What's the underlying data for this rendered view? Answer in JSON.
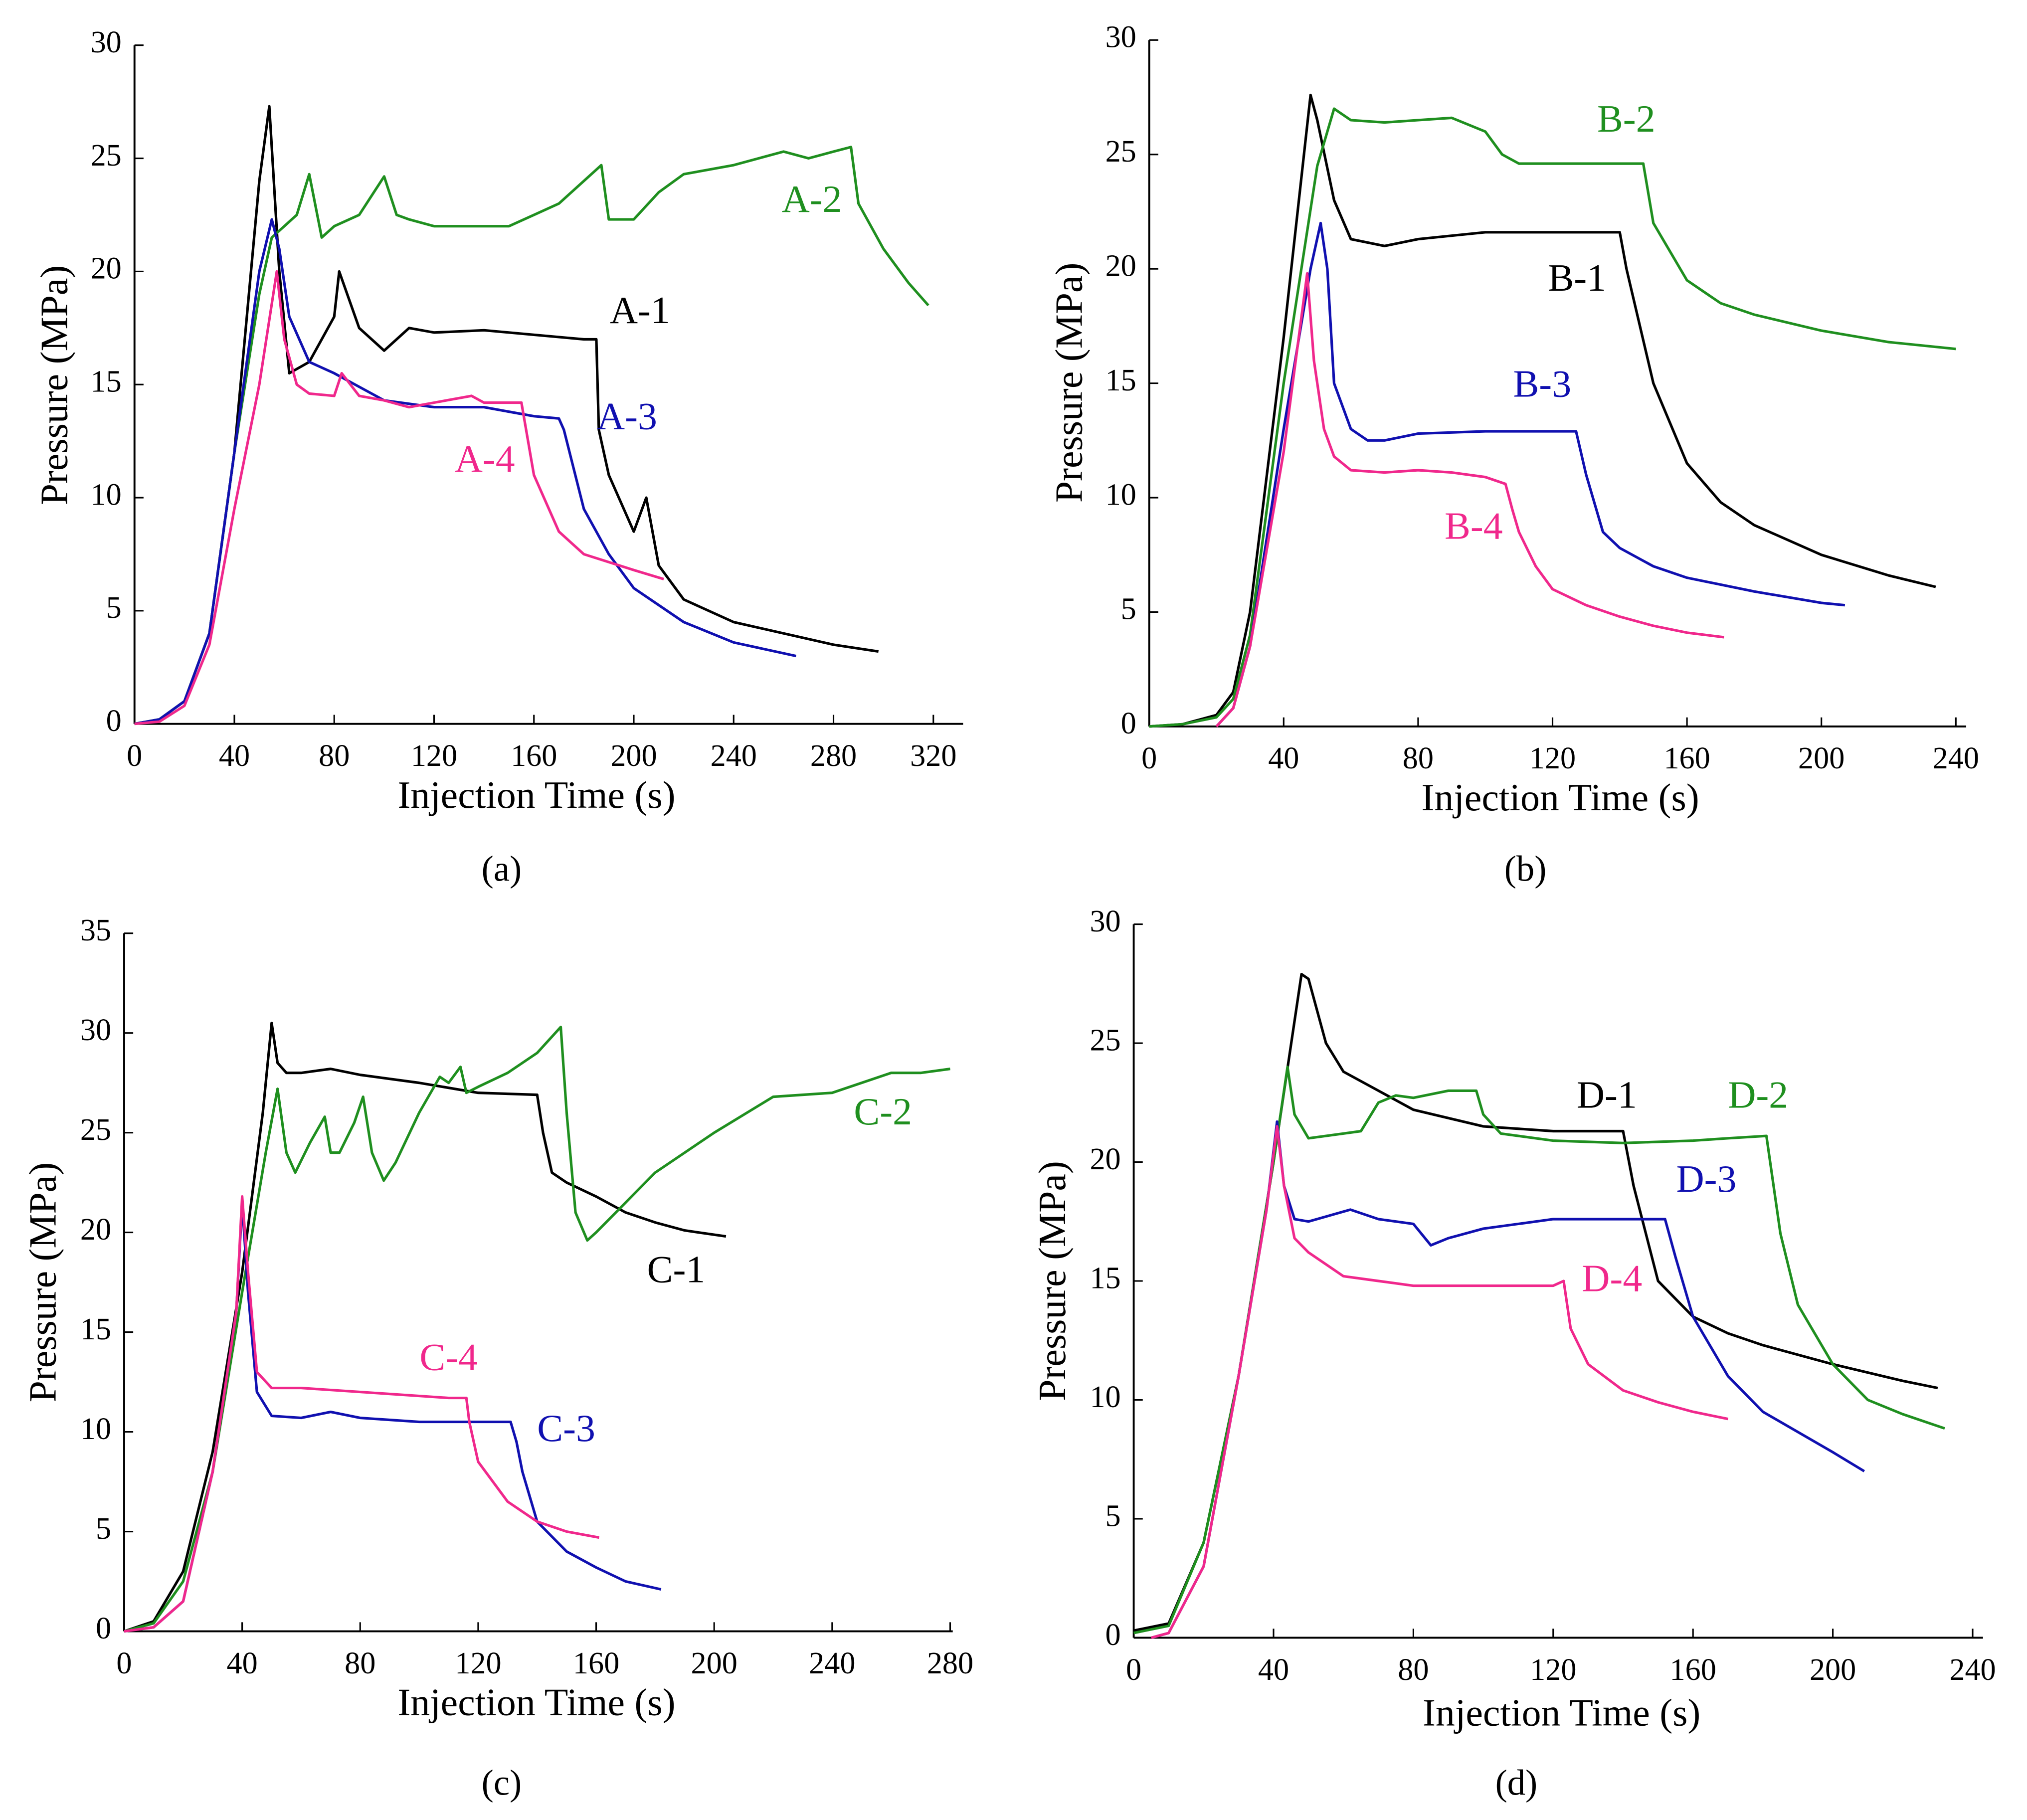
{
  "chart_data": [
    {
      "type": "line",
      "caption": "(a)",
      "xlabel": "Injection Time (s)",
      "ylabel": "Pressure (MPa)",
      "xlim": [
        0,
        320
      ],
      "ylim": [
        0,
        30
      ],
      "xticks": [
        0,
        40,
        80,
        120,
        160,
        200,
        240,
        280,
        320
      ],
      "yticks": [
        0,
        5,
        10,
        15,
        20,
        25,
        30
      ],
      "series": [
        {
          "name": "A-1",
          "color": "#000000",
          "x": [
            0,
            10,
            20,
            30,
            40,
            50,
            54,
            58,
            62,
            70,
            80,
            82,
            90,
            100,
            110,
            120,
            140,
            160,
            180,
            185,
            186,
            190,
            200,
            205,
            210,
            220,
            240,
            260,
            280,
            298
          ],
          "values": [
            0,
            0.2,
            1,
            4,
            12,
            24,
            27.3,
            20,
            15.5,
            16,
            18,
            20,
            17.5,
            16.5,
            17.5,
            17.3,
            17.4,
            17.2,
            17,
            17,
            13,
            11,
            8.5,
            10,
            7,
            5.5,
            4.5,
            4,
            3.5,
            3.2
          ]
        },
        {
          "name": "A-2",
          "color": "#1f8f1f",
          "x": [
            0,
            10,
            20,
            30,
            40,
            50,
            55,
            60,
            65,
            70,
            75,
            80,
            90,
            100,
            105,
            110,
            120,
            140,
            150,
            160,
            170,
            180,
            187,
            190,
            200,
            210,
            220,
            240,
            260,
            270,
            280,
            287,
            290,
            300,
            310,
            318
          ],
          "values": [
            0,
            0.2,
            1,
            4,
            12,
            19,
            21.5,
            22,
            22.5,
            24.3,
            21.5,
            22,
            22.5,
            24.2,
            22.5,
            22.3,
            22,
            22,
            22,
            22.5,
            23,
            24,
            24.7,
            22.3,
            22.3,
            23.5,
            24.3,
            24.7,
            25.3,
            25,
            25.3,
            25.5,
            23,
            21,
            19.5,
            18.5
          ]
        },
        {
          "name": "A-3",
          "color": "#1010b0",
          "x": [
            0,
            10,
            20,
            30,
            40,
            50,
            55,
            58,
            62,
            70,
            80,
            100,
            120,
            140,
            160,
            170,
            172,
            180,
            190,
            200,
            220,
            240,
            265
          ],
          "values": [
            0,
            0.2,
            1,
            4,
            12,
            20,
            22.3,
            21,
            18,
            16,
            15.5,
            14.3,
            14,
            14,
            13.6,
            13.5,
            13,
            9.5,
            7.5,
            6,
            4.5,
            3.6,
            3
          ]
        },
        {
          "name": "A-4",
          "color": "#f0288c",
          "x": [
            0,
            10,
            20,
            30,
            40,
            50,
            57,
            60,
            65,
            70,
            80,
            83,
            90,
            100,
            110,
            120,
            135,
            140,
            150,
            155,
            160,
            170,
            180,
            200,
            212
          ],
          "values": [
            0,
            0.1,
            0.8,
            3.5,
            9.5,
            15,
            20,
            17,
            15,
            14.6,
            14.5,
            15.5,
            14.5,
            14.3,
            14,
            14.2,
            14.5,
            14.2,
            14.2,
            14.2,
            11,
            8.5,
            7.5,
            6.8,
            6.4
          ]
        }
      ]
    },
    {
      "type": "line",
      "caption": "(b)",
      "xlabel": "Injection Time (s)",
      "ylabel": "Pressure (MPa)",
      "xlim": [
        0,
        240
      ],
      "ylim": [
        0,
        30
      ],
      "xticks": [
        0,
        40,
        80,
        120,
        160,
        200,
        240
      ],
      "yticks": [
        0,
        5,
        10,
        15,
        20,
        25,
        30
      ],
      "series": [
        {
          "name": "B-1",
          "color": "#000000",
          "x": [
            0,
            10,
            20,
            25,
            30,
            40,
            48,
            50,
            55,
            60,
            70,
            80,
            100,
            120,
            140,
            142,
            150,
            160,
            170,
            180,
            200,
            220,
            234
          ],
          "values": [
            0,
            0.1,
            0.5,
            1.5,
            5,
            17,
            27.6,
            26.5,
            23,
            21.3,
            21,
            21.3,
            21.6,
            21.6,
            21.6,
            20,
            15,
            11.5,
            9.8,
            8.8,
            7.5,
            6.6,
            6.1
          ]
        },
        {
          "name": "B-2",
          "color": "#1f8f1f",
          "x": [
            0,
            10,
            20,
            25,
            30,
            40,
            50,
            55,
            60,
            70,
            80,
            90,
            100,
            105,
            110,
            120,
            140,
            147,
            150,
            160,
            170,
            180,
            200,
            220,
            240
          ],
          "values": [
            0,
            0.1,
            0.4,
            1.2,
            4,
            15,
            24.5,
            27,
            26.5,
            26.4,
            26.5,
            26.6,
            26,
            25,
            24.6,
            24.6,
            24.6,
            24.6,
            22,
            19.5,
            18.5,
            18,
            17.3,
            16.8,
            16.5
          ]
        },
        {
          "name": "B-3",
          "color": "#1010b0",
          "x": [
            20,
            25,
            30,
            40,
            48,
            51,
            53,
            55,
            60,
            65,
            70,
            80,
            100,
            120,
            127,
            130,
            135,
            140,
            150,
            160,
            180,
            200,
            207
          ],
          "values": [
            0,
            0.8,
            3.5,
            13,
            20,
            22,
            20,
            15,
            13,
            12.5,
            12.5,
            12.8,
            12.9,
            12.9,
            12.9,
            11,
            8.5,
            7.8,
            7,
            6.5,
            5.9,
            5.4,
            5.3
          ]
        },
        {
          "name": "B-4",
          "color": "#f0288c",
          "x": [
            20,
            25,
            30,
            40,
            47,
            49,
            52,
            55,
            60,
            70,
            80,
            90,
            100,
            106,
            108,
            110,
            115,
            120,
            130,
            140,
            150,
            160,
            171
          ],
          "values": [
            0,
            0.8,
            3.5,
            12,
            19.8,
            16,
            13,
            11.8,
            11.2,
            11.1,
            11.2,
            11.1,
            10.9,
            10.6,
            9.5,
            8.5,
            7,
            6,
            5.3,
            4.8,
            4.4,
            4.1,
            3.9
          ]
        }
      ]
    },
    {
      "type": "line",
      "caption": "(c)",
      "xlabel": "Injection Time (s)",
      "ylabel": "Pressure (MPa)",
      "xlim": [
        0,
        280
      ],
      "ylim": [
        0,
        35
      ],
      "xticks": [
        0,
        40,
        80,
        120,
        160,
        200,
        240,
        280
      ],
      "yticks": [
        0,
        5,
        10,
        15,
        20,
        25,
        30,
        35
      ],
      "series": [
        {
          "name": "C-1",
          "color": "#000000",
          "x": [
            0,
            10,
            20,
            30,
            40,
            47,
            50,
            52,
            55,
            60,
            70,
            80,
            100,
            120,
            140,
            142,
            145,
            150,
            160,
            170,
            180,
            190,
            204
          ],
          "values": [
            0,
            0.5,
            3,
            9,
            18,
            26,
            30.5,
            28.5,
            28,
            28,
            28.2,
            27.9,
            27.5,
            27,
            26.9,
            25,
            23,
            22.5,
            21.8,
            21,
            20.5,
            20.1,
            19.8
          ]
        },
        {
          "name": "C-2",
          "color": "#1f8f1f",
          "x": [
            0,
            10,
            20,
            30,
            40,
            48,
            52,
            55,
            58,
            63,
            68,
            70,
            73,
            78,
            81,
            84,
            88,
            92,
            100,
            107,
            110,
            114,
            116,
            120,
            130,
            140,
            148,
            150,
            153,
            157,
            160,
            170,
            180,
            200,
            220,
            240,
            260,
            270,
            280
          ],
          "values": [
            0,
            0.4,
            2.5,
            8,
            17,
            24,
            27.2,
            24,
            23,
            24.5,
            25.8,
            24,
            24,
            25.5,
            26.8,
            24,
            22.6,
            23.5,
            26,
            27.8,
            27.5,
            28.3,
            27,
            27.3,
            28,
            29,
            30.3,
            26,
            21,
            19.6,
            20,
            21.5,
            23,
            25,
            26.8,
            27,
            28,
            28,
            28.2
          ]
        },
        {
          "name": "C-3",
          "color": "#1010b0",
          "x": [
            0,
            10,
            20,
            30,
            38,
            40,
            42,
            45,
            50,
            60,
            70,
            80,
            100,
            120,
            131,
            133,
            135,
            140,
            150,
            160,
            170,
            182
          ],
          "values": [
            0,
            0.2,
            1.5,
            8,
            16,
            21.5,
            17,
            12,
            10.8,
            10.7,
            11,
            10.7,
            10.5,
            10.5,
            10.5,
            9.5,
            8,
            5.5,
            4,
            3.2,
            2.5,
            2.1
          ]
        },
        {
          "name": "C-4",
          "color": "#f0288c",
          "x": [
            0,
            10,
            20,
            30,
            38,
            40,
            42,
            45,
            50,
            60,
            80,
            100,
            110,
            116,
            117,
            120,
            130,
            140,
            150,
            161
          ],
          "values": [
            0,
            0.2,
            1.5,
            8,
            16,
            21.8,
            18,
            13,
            12.2,
            12.2,
            12,
            11.8,
            11.7,
            11.7,
            10.5,
            8.5,
            6.5,
            5.5,
            5,
            4.7
          ]
        }
      ]
    },
    {
      "type": "line",
      "caption": "(d)",
      "xlabel": "Injection Time (s)",
      "ylabel": "Pressure (MPa)",
      "xlim": [
        0,
        240
      ],
      "ylim": [
        0,
        30
      ],
      "xticks": [
        0,
        40,
        80,
        120,
        160,
        200,
        240
      ],
      "yticks": [
        0,
        5,
        10,
        15,
        20,
        25,
        30
      ],
      "series": [
        {
          "name": "D-1",
          "color": "#000000",
          "x": [
            0,
            10,
            20,
            30,
            40,
            48,
            50,
            55,
            60,
            70,
            80,
            100,
            120,
            140,
            143,
            150,
            160,
            170,
            180,
            200,
            220,
            230
          ],
          "values": [
            0.3,
            0.6,
            4,
            11,
            20,
            27.9,
            27.7,
            25,
            23.8,
            23,
            22.2,
            21.5,
            21.3,
            21.3,
            19,
            15,
            13.5,
            12.8,
            12.3,
            11.5,
            10.8,
            10.5
          ]
        },
        {
          "name": "D-2",
          "color": "#1f8f1f",
          "x": [
            0,
            10,
            20,
            30,
            40,
            44,
            46,
            50,
            60,
            65,
            70,
            75,
            80,
            90,
            98,
            100,
            105,
            120,
            140,
            160,
            170,
            181,
            185,
            190,
            200,
            210,
            220,
            232
          ],
          "values": [
            0.2,
            0.5,
            4,
            11,
            20,
            24,
            22,
            21,
            21.2,
            21.3,
            22.5,
            22.8,
            22.7,
            23,
            23,
            22,
            21.2,
            20.9,
            20.8,
            20.9,
            21,
            21.1,
            17,
            14,
            11.5,
            10,
            9.4,
            8.8
          ]
        },
        {
          "name": "D-3",
          "color": "#1010b0",
          "x": [
            5,
            10,
            20,
            30,
            38,
            41,
            43,
            46,
            50,
            62,
            70,
            80,
            85,
            90,
            100,
            120,
            140,
            152,
            155,
            160,
            170,
            180,
            200,
            209
          ],
          "values": [
            0,
            0.2,
            3,
            11,
            18,
            21.7,
            19,
            17.6,
            17.5,
            18,
            17.6,
            17.4,
            16.5,
            16.8,
            17.2,
            17.6,
            17.6,
            17.6,
            16,
            13.5,
            11,
            9.5,
            7.8,
            7
          ]
        },
        {
          "name": "D-4",
          "color": "#f0288c",
          "x": [
            5,
            10,
            20,
            30,
            38,
            41,
            43,
            46,
            50,
            60,
            70,
            80,
            100,
            120,
            123,
            125,
            130,
            140,
            150,
            160,
            170
          ],
          "values": [
            0,
            0.2,
            3,
            11,
            18,
            21.5,
            19,
            16.8,
            16.2,
            15.2,
            15,
            14.8,
            14.8,
            14.8,
            15,
            13,
            11.5,
            10.4,
            9.9,
            9.5,
            9.2
          ]
        }
      ]
    }
  ]
}
